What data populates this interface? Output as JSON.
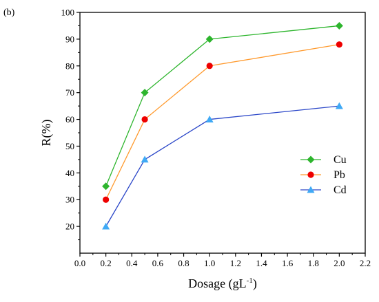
{
  "panel_label": "(b)",
  "chart_data": {
    "type": "line",
    "xlabel": "Dosage (gL",
    "xlabel_sup": "-1",
    "xlabel_suffix": ")",
    "ylabel": "R(%)",
    "xlim": [
      0.0,
      2.2
    ],
    "ylim": [
      10,
      100
    ],
    "xticks": [
      0.0,
      0.2,
      0.4,
      0.6,
      0.8,
      1.0,
      1.2,
      1.4,
      1.6,
      1.8,
      2.0,
      2.2
    ],
    "xtick_labels": [
      "0.0",
      "0.2",
      "0.4",
      "0.6",
      "0.8",
      "1.0",
      "1.2",
      "1.4",
      "1.6",
      "1.8",
      "2.0",
      "2.2"
    ],
    "yticks": [
      20,
      30,
      40,
      50,
      60,
      70,
      80,
      90,
      100
    ],
    "ytick_labels": [
      "20",
      "30",
      "40",
      "50",
      "60",
      "70",
      "80",
      "90",
      "100"
    ],
    "grid": false,
    "legend_position": "right",
    "series": [
      {
        "name": "Cu",
        "color": "#2db52d",
        "marker": "diamond",
        "x": [
          0.2,
          0.5,
          1.0,
          2.0
        ],
        "y": [
          35,
          70,
          90,
          95
        ]
      },
      {
        "name": "Pb",
        "color": "#ff9a2e",
        "marker_color": "#ee0000",
        "marker": "circle",
        "x": [
          0.2,
          0.5,
          1.0,
          2.0
        ],
        "y": [
          30,
          60,
          80,
          88
        ]
      },
      {
        "name": "Cd",
        "color": "#2a46c8",
        "marker_color": "#3fa9f5",
        "marker": "triangle",
        "x": [
          0.2,
          0.5,
          1.0,
          2.0
        ],
        "y": [
          20,
          45,
          60,
          65
        ]
      }
    ]
  }
}
